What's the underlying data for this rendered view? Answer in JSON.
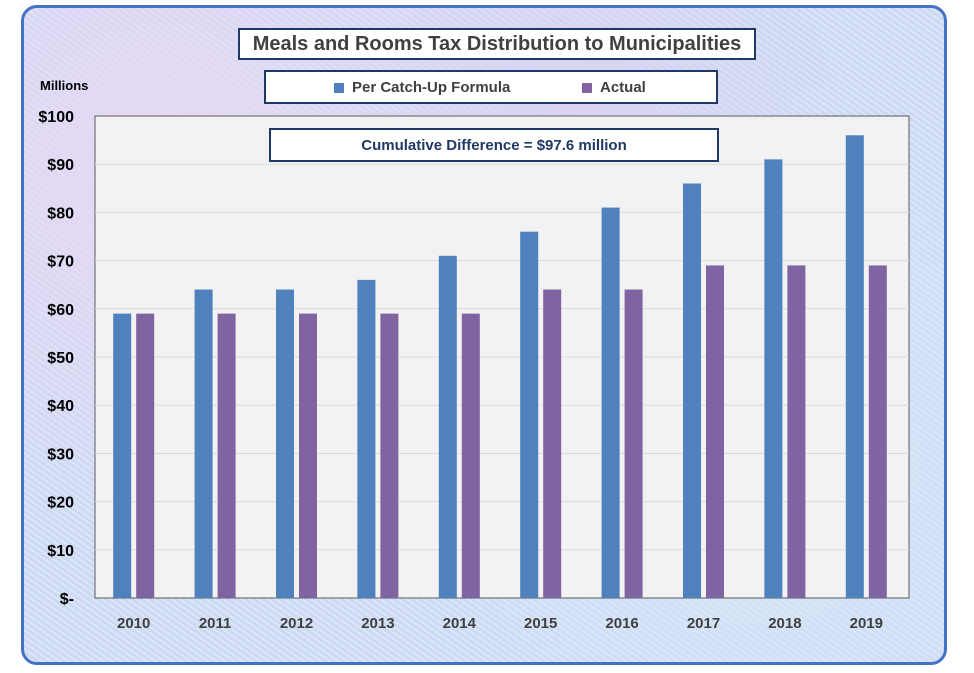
{
  "chart_data": {
    "type": "bar",
    "title": "Meals and Rooms Tax Distribution to Municipalities",
    "ylabel": "Millions",
    "xlabel": "",
    "ylim": [
      0,
      100
    ],
    "ytick_labels": [
      "$-",
      "$10",
      "$20",
      "$30",
      "$40",
      "$50",
      "$60",
      "$70",
      "$80",
      "$90",
      "$100"
    ],
    "categories": [
      "2010",
      "2011",
      "2012",
      "2013",
      "2014",
      "2015",
      "2016",
      "2017",
      "2018",
      "2019"
    ],
    "series": [
      {
        "name": "Per Catch-Up Formula",
        "color": "#4f81bd",
        "values": [
          59,
          64,
          64,
          66,
          71,
          76,
          81,
          86,
          91,
          96
        ]
      },
      {
        "name": "Actual",
        "color": "#8064a2",
        "values": [
          59,
          59,
          59,
          59,
          59,
          64,
          64,
          69,
          69,
          69
        ]
      }
    ],
    "annotation": "Cumulative Difference = $97.6 million",
    "grid": true,
    "legend_position": "top"
  }
}
